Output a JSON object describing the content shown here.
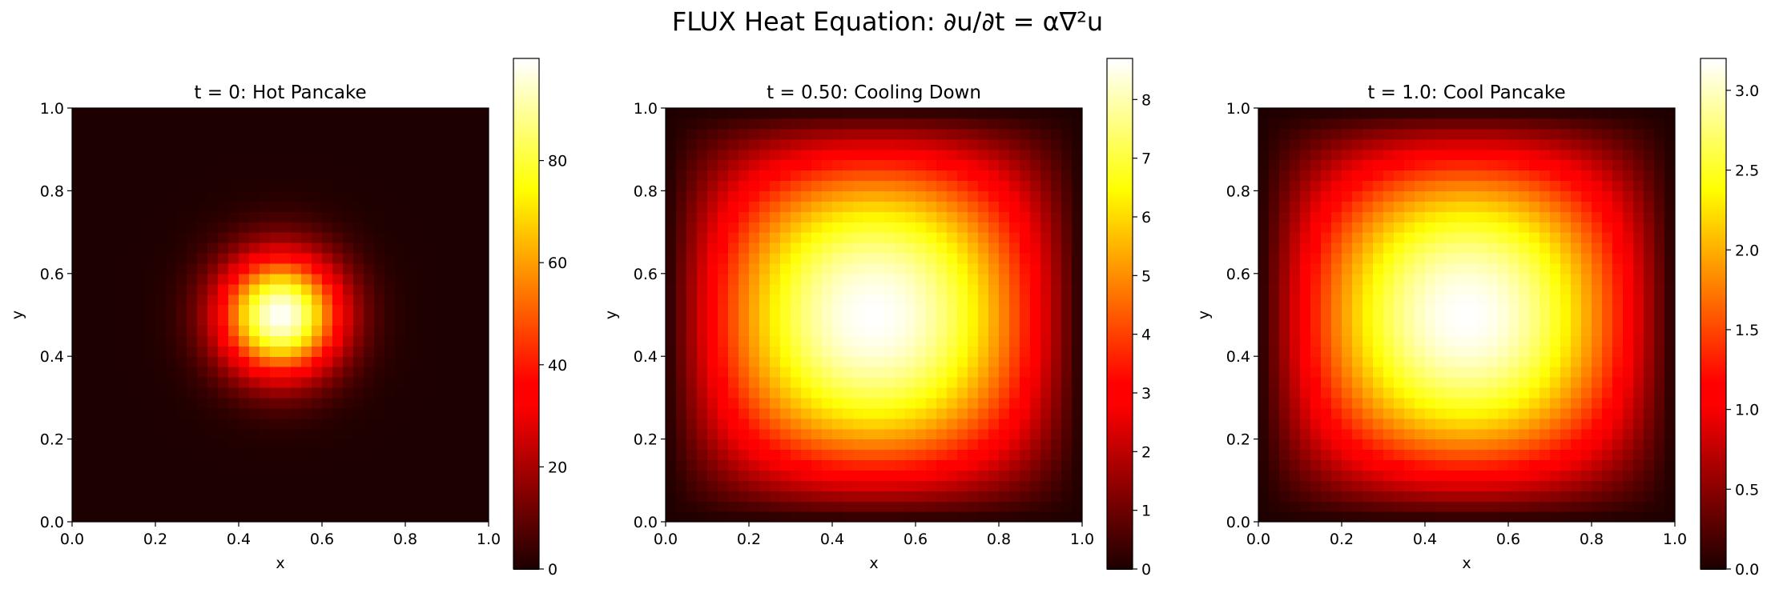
{
  "suptitle": "FLUX Heat Equation: ∂u/∂t = α∇²u",
  "chart_data": [
    {
      "type": "heatmap",
      "title": "t = 0: Hot Pancake",
      "xlabel": "x",
      "ylabel": "y",
      "xlim": [
        0.0,
        1.0
      ],
      "ylim": [
        0.0,
        1.0
      ],
      "xticks": [
        "0.0",
        "0.2",
        "0.4",
        "0.6",
        "0.8",
        "1.0"
      ],
      "yticks": [
        "0.0",
        "0.2",
        "0.4",
        "0.6",
        "0.8",
        "1.0"
      ],
      "grid": false,
      "colormap": "hot",
      "grid_cells": 40,
      "field": {
        "kind": "gaussian",
        "center": [
          0.5,
          0.5
        ],
        "sigma": 0.1,
        "peak": 100
      },
      "vmin": 0,
      "vmax": 100,
      "colorbar_ticks": [
        0,
        20,
        40,
        60,
        80
      ],
      "colorbar_tick_labels": [
        "0",
        "20",
        "40",
        "60",
        "80"
      ]
    },
    {
      "type": "heatmap",
      "title": "t = 0.50: Cooling Down",
      "xlabel": "x",
      "ylabel": "y",
      "xlim": [
        0.0,
        1.0
      ],
      "ylim": [
        0.0,
        1.0
      ],
      "xticks": [
        "0.0",
        "0.2",
        "0.4",
        "0.6",
        "0.8",
        "1.0"
      ],
      "yticks": [
        "0.0",
        "0.2",
        "0.4",
        "0.6",
        "0.8",
        "1.0"
      ],
      "grid": false,
      "colormap": "hot",
      "grid_cells": 40,
      "field": {
        "kind": "sine_mode",
        "peak": 8.7
      },
      "vmin": 0,
      "vmax": 8.7,
      "colorbar_ticks": [
        0,
        1,
        2,
        3,
        4,
        5,
        6,
        7,
        8
      ],
      "colorbar_tick_labels": [
        "0",
        "1",
        "2",
        "3",
        "4",
        "5",
        "6",
        "7",
        "8"
      ]
    },
    {
      "type": "heatmap",
      "title": "t = 1.0: Cool Pancake",
      "xlabel": "x",
      "ylabel": "y",
      "xlim": [
        0.0,
        1.0
      ],
      "ylim": [
        0.0,
        1.0
      ],
      "xticks": [
        "0.0",
        "0.2",
        "0.4",
        "0.6",
        "0.8",
        "1.0"
      ],
      "yticks": [
        "0.0",
        "0.2",
        "0.4",
        "0.6",
        "0.8",
        "1.0"
      ],
      "grid": false,
      "colormap": "hot",
      "grid_cells": 40,
      "field": {
        "kind": "sine_mode",
        "peak": 3.2
      },
      "vmin": 0,
      "vmax": 3.2,
      "colorbar_ticks": [
        0,
        0.5,
        1.0,
        1.5,
        2.0,
        2.5,
        3.0
      ],
      "colorbar_tick_labels": [
        "0.0",
        "0.5",
        "1.0",
        "1.5",
        "2.0",
        "2.5",
        "3.0"
      ]
    }
  ]
}
